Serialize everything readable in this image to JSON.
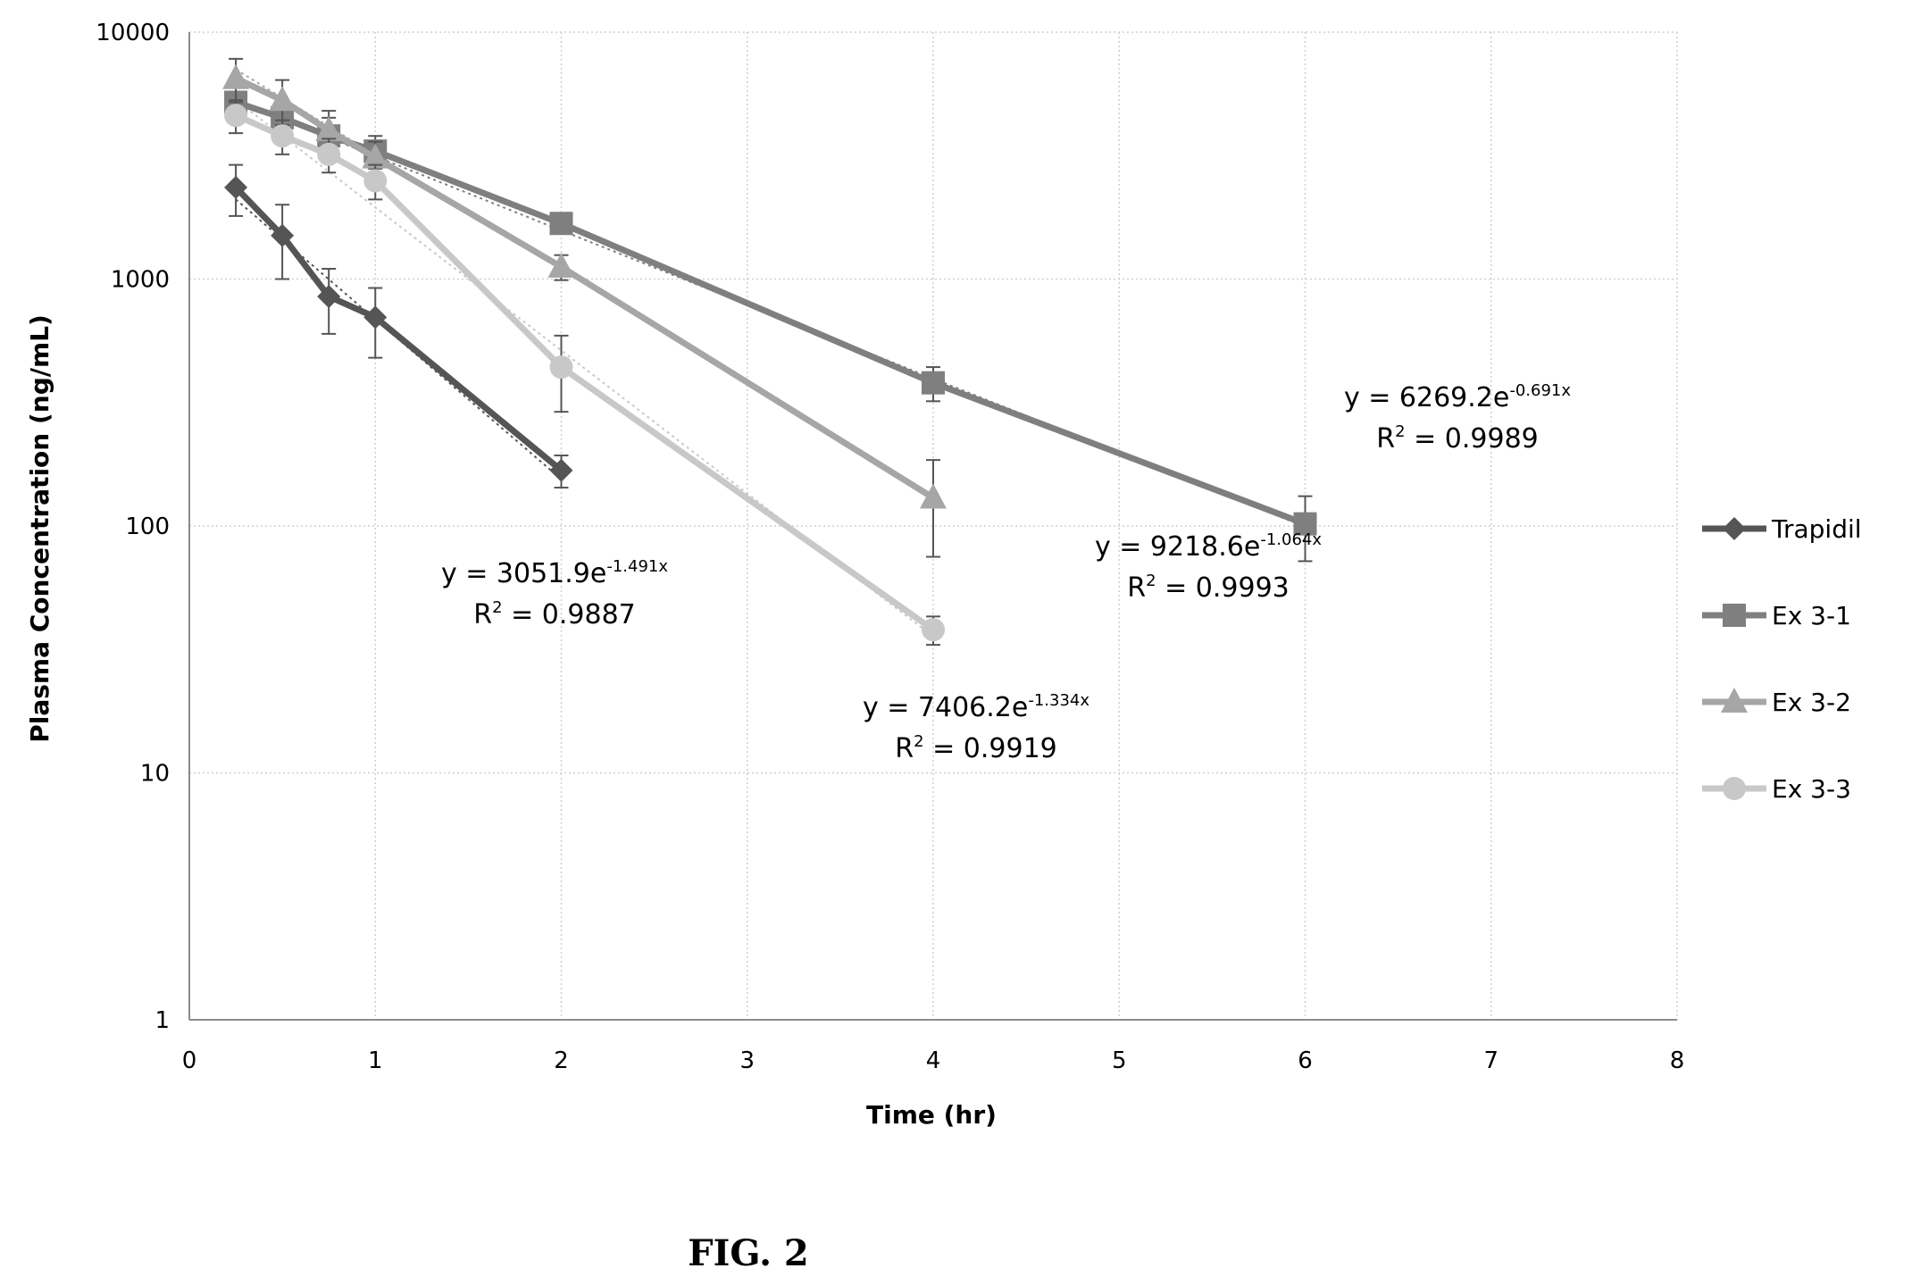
{
  "chart_data": {
    "type": "line",
    "title": "",
    "xlabel": "Time (hr)",
    "ylabel": "Plasma Concentration (ng/mL)",
    "xlim": [
      0,
      8
    ],
    "ylim": [
      1,
      10000
    ],
    "yscale": "log",
    "x_ticks": [
      "0",
      "1",
      "2",
      "3",
      "4",
      "5",
      "6",
      "7",
      "8"
    ],
    "y_ticks": [
      "1",
      "10",
      "100",
      "1000",
      "10000"
    ],
    "grid": true,
    "legend_position": "right",
    "series": [
      {
        "name": "Trapidil",
        "color": "#555555",
        "marker": "diamond",
        "x": [
          0.25,
          0.5,
          0.75,
          1,
          2
        ],
        "y": [
          2350,
          1500,
          850,
          700,
          168
        ],
        "err": [
          550,
          500,
          250,
          220,
          25
        ]
      },
      {
        "name": "Ex 3-1",
        "color": "#7f7f7f",
        "marker": "square",
        "x": [
          0.25,
          0.5,
          0.75,
          1,
          2,
          4,
          6
        ],
        "y": [
          5200,
          4500,
          3800,
          3300,
          1680,
          380,
          102
        ],
        "err": [
          900,
          800,
          700,
          500,
          150,
          60,
          30
        ]
      },
      {
        "name": "Ex 3-2",
        "color": "#a6a6a6",
        "marker": "triangle",
        "x": [
          0.25,
          0.5,
          0.75,
          1,
          2,
          4
        ],
        "y": [
          6500,
          5300,
          4000,
          3100,
          1120,
          130
        ],
        "err": [
          1300,
          1100,
          800,
          500,
          130,
          55
        ]
      },
      {
        "name": "Ex 3-3",
        "color": "#c8c8c8",
        "marker": "circle",
        "x": [
          0.25,
          0.5,
          0.75,
          1,
          2,
          4
        ],
        "y": [
          4600,
          3800,
          3200,
          2500,
          440,
          38
        ],
        "err": [
          700,
          600,
          500,
          400,
          150,
          5
        ]
      }
    ],
    "trendlines": [
      {
        "series": "Trapidil",
        "a": 3051.9,
        "b": -1.491,
        "x_range": [
          0.25,
          2
        ]
      },
      {
        "series": "Ex 3-1",
        "a": 6269.2,
        "b": -0.691,
        "x_range": [
          0.25,
          6
        ]
      },
      {
        "series": "Ex 3-2",
        "a": 9218.6,
        "b": -1.064,
        "x_range": [
          0.25,
          4
        ]
      },
      {
        "series": "Ex 3-3",
        "a": 7406.2,
        "b": -1.334,
        "x_range": [
          0.25,
          4
        ]
      }
    ],
    "annotations": [
      {
        "eq_main": "y = 3051.9e",
        "eq_exp": "-1.491x",
        "r2_main": "R",
        "r2_exp": "2",
        "r2_value": " = 0.9887"
      },
      {
        "eq_main": "y = 6269.2e",
        "eq_exp": "-0.691x",
        "r2_main": "R",
        "r2_exp": "2",
        "r2_value": " = 0.9989"
      },
      {
        "eq_main": "y = 9218.6e",
        "eq_exp": "-1.064x",
        "r2_main": "R",
        "r2_exp": "2",
        "r2_value": " = 0.9993"
      },
      {
        "eq_main": "y = 7406.2e",
        "eq_exp": "-1.334x",
        "r2_main": "R",
        "r2_exp": "2",
        "r2_value": " = 0.9919"
      }
    ]
  },
  "figure_caption": "FIG. 2"
}
